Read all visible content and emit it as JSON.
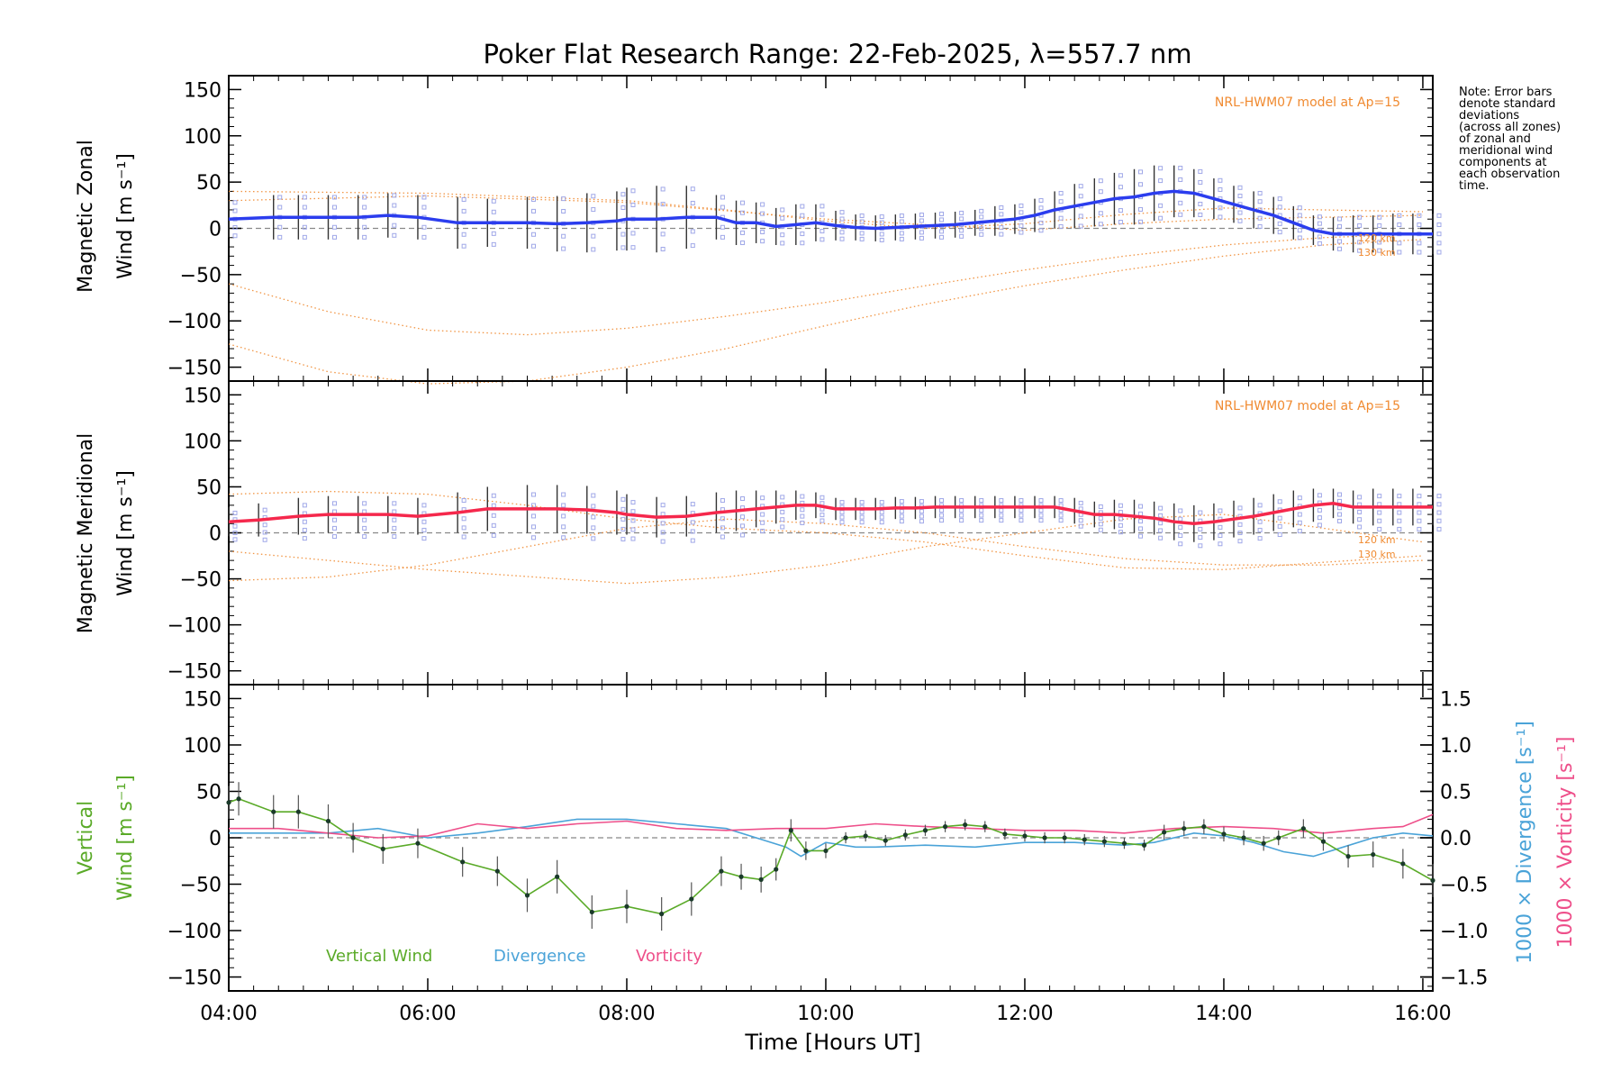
{
  "title": "Poker Flat Research Range: 22-Feb-2025, λ=557.7 nm",
  "note_lines": [
    "Note: Error bars",
    "denote standard",
    "deviations",
    "(across all zones)",
    "of zonal and",
    "meridional wind",
    "components at",
    "each observation",
    "time."
  ],
  "colors": {
    "zonal": "#2b3dee",
    "meridional": "#f5284c",
    "vertical": "#5aaa28",
    "divergence": "#4aa3d8",
    "vorticity": "#ee4f8a",
    "model": "#f08a30",
    "zone_points": "#a0a8e8",
    "zero_line": "#888888"
  },
  "chart_data": [
    {
      "type": "line",
      "panel": "zonal",
      "ylabel_line1": "Magnetic Zonal",
      "ylabel_line2": "Wind [m s⁻¹]",
      "xlim": [
        4.0,
        16.1
      ],
      "ylim": [
        -165,
        165
      ],
      "yticks": [
        -150,
        -100,
        -50,
        0,
        50,
        100,
        150
      ],
      "model_label": "NRL-HWM07 model at Ap=15",
      "model_curve_labels": [
        "120 km",
        "130 km"
      ],
      "series": [
        {
          "x": [
            4.0,
            4.45,
            4.7,
            5.0,
            5.3,
            5.6,
            5.9,
            6.3,
            6.6,
            7.0,
            7.3,
            7.6,
            7.9,
            8.0,
            8.3,
            8.6,
            8.9,
            9.1,
            9.3,
            9.5,
            9.7,
            9.9,
            10.1,
            10.3,
            10.5,
            10.7,
            10.9,
            11.1,
            11.3,
            11.5,
            11.7,
            11.9,
            12.1,
            12.3,
            12.5,
            12.7,
            12.9,
            13.1,
            13.3,
            13.5,
            13.7,
            13.9,
            14.1,
            14.3,
            14.5,
            14.7,
            14.9,
            15.1,
            15.3,
            15.5,
            15.7,
            15.9,
            16.1
          ],
          "y": [
            10,
            12,
            12,
            12,
            12,
            14,
            12,
            6,
            6,
            6,
            5,
            6,
            8,
            10,
            10,
            12,
            12,
            6,
            6,
            2,
            4,
            6,
            3,
            1,
            0,
            1,
            2,
            3,
            4,
            6,
            8,
            10,
            14,
            20,
            24,
            28,
            32,
            34,
            38,
            40,
            38,
            32,
            26,
            20,
            14,
            6,
            -2,
            -6,
            -6,
            -6,
            -6,
            -6,
            -6
          ],
          "err": [
            20,
            24,
            24,
            24,
            24,
            24,
            24,
            28,
            26,
            28,
            30,
            32,
            32,
            34,
            36,
            34,
            24,
            24,
            22,
            20,
            22,
            20,
            16,
            14,
            14,
            14,
            14,
            14,
            14,
            14,
            16,
            16,
            18,
            20,
            24,
            26,
            28,
            30,
            30,
            28,
            26,
            22,
            20,
            20,
            20,
            18,
            16,
            18,
            20,
            20,
            22,
            22,
            22
          ]
        }
      ],
      "model_curves": [
        {
          "label": "120 km",
          "x": [
            4,
            5,
            6,
            7,
            8,
            9,
            10,
            11,
            12,
            13,
            14,
            15,
            16
          ],
          "y": [
            -60,
            -90,
            -110,
            -115,
            -108,
            -95,
            -80,
            -62,
            -45,
            -30,
            -18,
            -10,
            -6
          ]
        },
        {
          "label": "130 km",
          "x": [
            4,
            5,
            6,
            7,
            8,
            9,
            10,
            11,
            12,
            13,
            14,
            15,
            16
          ],
          "y": [
            -125,
            -155,
            -168,
            -165,
            -150,
            -130,
            -105,
            -82,
            -62,
            -45,
            -30,
            -18,
            -12
          ]
        },
        {
          "label": "",
          "x": [
            4,
            6,
            8,
            9,
            10,
            11,
            12,
            13,
            14,
            15,
            16
          ],
          "y": [
            40,
            38,
            30,
            20,
            8,
            0,
            5,
            15,
            22,
            20,
            18
          ]
        },
        {
          "label": "",
          "x": [
            4,
            6,
            8,
            10,
            12,
            13,
            14,
            15,
            16
          ],
          "y": [
            30,
            35,
            28,
            10,
            -2,
            5,
            10,
            12,
            14
          ]
        }
      ]
    },
    {
      "type": "line",
      "panel": "meridional",
      "ylabel_line1": "Magnetic Meridional",
      "ylabel_line2": "Wind [m s⁻¹]",
      "xlim": [
        4.0,
        16.1
      ],
      "ylim": [
        -165,
        165
      ],
      "yticks": [
        -150,
        -100,
        -50,
        0,
        50,
        100,
        150
      ],
      "model_label": "NRL-HWM07 model at Ap=15",
      "model_curve_labels": [
        "120 km",
        "130 km"
      ],
      "series": [
        {
          "x": [
            4.0,
            4.3,
            4.7,
            5.0,
            5.3,
            5.6,
            5.9,
            6.3,
            6.6,
            7.0,
            7.3,
            7.6,
            7.9,
            8.0,
            8.3,
            8.6,
            8.9,
            9.1,
            9.3,
            9.5,
            9.7,
            9.9,
            10.1,
            10.3,
            10.5,
            10.7,
            10.9,
            11.1,
            11.3,
            11.5,
            11.7,
            11.9,
            12.1,
            12.3,
            12.5,
            12.7,
            12.9,
            13.1,
            13.3,
            13.5,
            13.7,
            13.9,
            14.1,
            14.3,
            14.5,
            14.7,
            14.9,
            15.1,
            15.3,
            15.5,
            15.7,
            15.9,
            16.1
          ],
          "y": [
            12,
            14,
            18,
            20,
            20,
            20,
            18,
            22,
            26,
            26,
            26,
            25,
            22,
            20,
            17,
            18,
            22,
            24,
            26,
            28,
            30,
            30,
            26,
            26,
            26,
            27,
            27,
            28,
            28,
            28,
            28,
            28,
            28,
            28,
            24,
            20,
            20,
            18,
            16,
            12,
            10,
            12,
            15,
            18,
            22,
            26,
            30,
            32,
            28,
            28,
            28,
            28,
            28
          ],
          "err": [
            16,
            18,
            20,
            20,
            20,
            20,
            20,
            22,
            24,
            26,
            26,
            26,
            24,
            22,
            22,
            22,
            22,
            22,
            20,
            18,
            16,
            14,
            12,
            12,
            12,
            12,
            12,
            12,
            12,
            12,
            12,
            12,
            12,
            12,
            14,
            14,
            16,
            18,
            18,
            20,
            20,
            20,
            20,
            20,
            20,
            20,
            18,
            16,
            18,
            20,
            20,
            20,
            20
          ]
        }
      ],
      "model_curves": [
        {
          "label": "120 km",
          "x": [
            4,
            5,
            6,
            7,
            8,
            9,
            10,
            11,
            12,
            13,
            14,
            15,
            16
          ],
          "y": [
            42,
            45,
            42,
            30,
            15,
            5,
            0,
            -10,
            -25,
            -38,
            -40,
            -32,
            -25
          ]
        },
        {
          "label": "130 km",
          "x": [
            4,
            5,
            6,
            7,
            8,
            9,
            10,
            11,
            12,
            13,
            14,
            15,
            16
          ],
          "y": [
            -52,
            -48,
            -35,
            -15,
            5,
            15,
            10,
            0,
            -15,
            -28,
            -35,
            -35,
            -30
          ]
        },
        {
          "label": "",
          "x": [
            4,
            6,
            8,
            9,
            10,
            11,
            12,
            13,
            14,
            15,
            16
          ],
          "y": [
            -20,
            -40,
            -55,
            -48,
            -35,
            -15,
            0,
            15,
            20,
            5,
            -10
          ]
        }
      ]
    },
    {
      "type": "line",
      "panel": "vertical",
      "ylabel_line1": "Vertical",
      "ylabel_line2": "Wind [m s⁻¹]",
      "y2label_divergence": "1000 × Divergence [s⁻¹]",
      "y2label_vorticity": "1000 × Vorticity [s⁻¹]",
      "xlim": [
        4.0,
        16.1
      ],
      "ylim": [
        -165,
        165
      ],
      "y2lim": [
        -1.65,
        1.65
      ],
      "yticks": [
        -150,
        -100,
        -50,
        0,
        50,
        100,
        150
      ],
      "y2ticks": [
        -1.5,
        -1.0,
        -0.5,
        0.0,
        0.5,
        1.0,
        1.5
      ],
      "y2ticklabels": [
        "−1.5",
        "−1.0",
        "−0.5",
        "0.0",
        "0.5",
        "1.0",
        "1.5"
      ],
      "xticks": [
        4,
        6,
        8,
        10,
        12,
        14,
        16
      ],
      "xticklabels": [
        "04:00",
        "06:00",
        "08:00",
        "10:00",
        "12:00",
        "14:00",
        "16:00"
      ],
      "xlabel": "Time [Hours UT]",
      "legend": [
        "Vertical Wind",
        "Divergence",
        "Vorticity"
      ],
      "series": [
        {
          "name": "Vertical Wind",
          "x": [
            4.0,
            4.1,
            4.45,
            4.7,
            5.0,
            5.25,
            5.55,
            5.9,
            6.35,
            6.7,
            7.0,
            7.3,
            7.65,
            8.0,
            8.35,
            8.65,
            8.95,
            9.15,
            9.35,
            9.5,
            9.65,
            9.8,
            10.0,
            10.2,
            10.4,
            10.6,
            10.8,
            11.0,
            11.2,
            11.4,
            11.6,
            11.8,
            12.0,
            12.2,
            12.4,
            12.6,
            12.8,
            13.0,
            13.2,
            13.4,
            13.6,
            13.8,
            14.0,
            14.2,
            14.4,
            14.55,
            14.8,
            15.0,
            15.25,
            15.5,
            15.8,
            16.1
          ],
          "y": [
            38,
            42,
            28,
            28,
            18,
            0,
            -12,
            -6,
            -26,
            -36,
            -62,
            -42,
            -80,
            -74,
            -82,
            -66,
            -36,
            -42,
            -45,
            -34,
            8,
            -14,
            -14,
            0,
            2,
            -3,
            3,
            8,
            12,
            14,
            12,
            4,
            2,
            0,
            0,
            -2,
            -4,
            -6,
            -8,
            6,
            10,
            12,
            4,
            0,
            -6,
            0,
            10,
            -4,
            -20,
            -18,
            -28,
            -46
          ],
          "err": [
            18,
            18,
            18,
            18,
            18,
            16,
            16,
            16,
            16,
            16,
            18,
            18,
            18,
            18,
            18,
            18,
            16,
            14,
            14,
            12,
            12,
            10,
            8,
            6,
            6,
            6,
            6,
            6,
            6,
            6,
            6,
            6,
            6,
            6,
            6,
            6,
            6,
            6,
            6,
            8,
            8,
            8,
            8,
            8,
            8,
            8,
            10,
            10,
            12,
            14,
            16,
            18
          ]
        },
        {
          "name": "Divergence",
          "x": [
            4.0,
            4.5,
            5.0,
            5.5,
            6.0,
            6.5,
            7.0,
            7.5,
            8.0,
            8.5,
            9.0,
            9.3,
            9.6,
            9.75,
            10.0,
            10.3,
            10.5,
            11.0,
            11.5,
            12.0,
            12.5,
            13.0,
            13.3,
            13.5,
            13.7,
            14.0,
            14.3,
            14.6,
            14.9,
            15.2,
            15.5,
            15.8,
            16.1
          ],
          "y": [
            0.05,
            0.05,
            0.05,
            0.1,
            0.0,
            0.05,
            0.12,
            0.2,
            0.2,
            0.15,
            0.1,
            0.0,
            -0.1,
            -0.2,
            -0.05,
            -0.1,
            -0.1,
            -0.08,
            -0.1,
            -0.05,
            -0.05,
            -0.08,
            -0.05,
            0.0,
            0.05,
            0.02,
            -0.05,
            -0.15,
            -0.2,
            -0.1,
            0.0,
            0.05,
            0.02
          ]
        },
        {
          "name": "Vorticity",
          "x": [
            4.0,
            4.5,
            5.0,
            5.5,
            6.0,
            6.5,
            7.0,
            7.5,
            8.0,
            8.5,
            9.0,
            9.5,
            10.0,
            10.5,
            11.0,
            11.5,
            12.0,
            12.5,
            13.0,
            13.5,
            14.0,
            14.5,
            15.0,
            15.5,
            15.8,
            16.1
          ],
          "y": [
            0.1,
            0.1,
            0.05,
            0.0,
            0.02,
            0.15,
            0.1,
            0.15,
            0.18,
            0.1,
            0.08,
            0.1,
            0.1,
            0.15,
            0.12,
            0.1,
            0.08,
            0.08,
            0.05,
            0.1,
            0.12,
            0.1,
            0.05,
            0.1,
            0.12,
            0.25
          ]
        }
      ]
    }
  ]
}
